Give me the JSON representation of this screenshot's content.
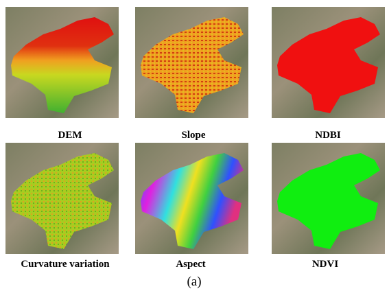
{
  "panels": [
    {
      "label": "DEM"
    },
    {
      "label": "Slope"
    },
    {
      "label": "NDBI"
    },
    {
      "label": "Curvature variation"
    },
    {
      "label": "Aspect"
    },
    {
      "label": "NDVI"
    }
  ],
  "caption": "(a)"
}
